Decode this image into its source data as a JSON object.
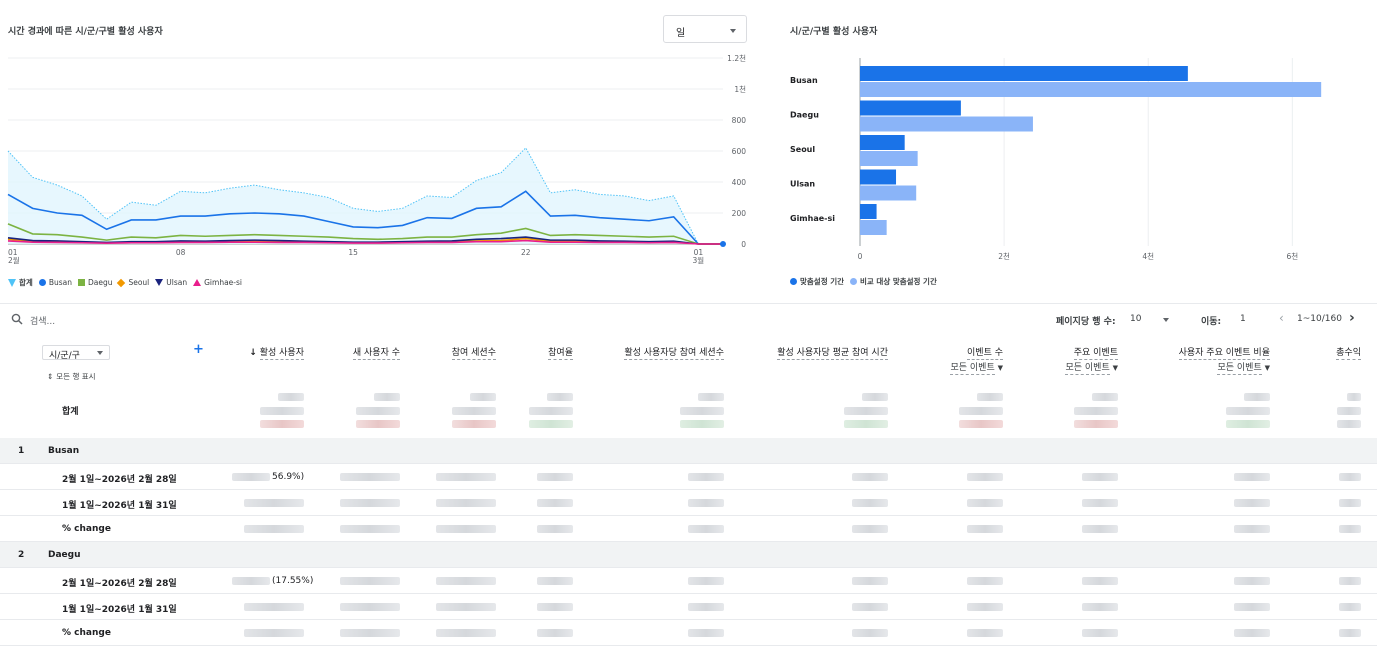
{
  "line_chart": {
    "title": "시간 경과에 따른 시/군/구별 활성 사용자",
    "period_select": "일",
    "y_ticks": [
      "0",
      "200",
      "400",
      "600",
      "800",
      "1천",
      "1.2천"
    ],
    "x_ticks": [
      {
        "day": "01",
        "month": "2월"
      },
      {
        "day": "08",
        "month": ""
      },
      {
        "day": "15",
        "month": ""
      },
      {
        "day": "22",
        "month": ""
      },
      {
        "day": "01",
        "month": "3월"
      }
    ],
    "legend": [
      "합계",
      "Busan",
      "Daegu",
      "Seoul",
      "Ulsan",
      "Gimhae-si"
    ],
    "colors": {
      "total": "#4fc3f7",
      "busan": "#1a73e8",
      "daegu": "#7cb342",
      "seoul": "#f29900",
      "ulsan": "#1a237e",
      "gimhae": "#e91e8c"
    }
  },
  "chart_data": [
    {
      "type": "line",
      "title": "시간 경과에 따른 시/군/구별 활성 사용자",
      "x": [
        "2/1",
        "2/2",
        "2/3",
        "2/4",
        "2/5",
        "2/6",
        "2/7",
        "2/8",
        "2/9",
        "2/10",
        "2/11",
        "2/12",
        "2/13",
        "2/14",
        "2/15",
        "2/16",
        "2/17",
        "2/18",
        "2/19",
        "2/20",
        "2/21",
        "2/22",
        "2/23",
        "2/24",
        "2/25",
        "2/26",
        "2/27",
        "2/28",
        "3/1",
        "3/2"
      ],
      "ylim": [
        0,
        1200
      ],
      "series": [
        {
          "name": "합계",
          "values": [
            600,
            430,
            380,
            310,
            160,
            270,
            250,
            340,
            330,
            360,
            380,
            350,
            330,
            300,
            230,
            210,
            230,
            310,
            300,
            410,
            460,
            620,
            330,
            350,
            320,
            310,
            280,
            310,
            0,
            0
          ]
        },
        {
          "name": "Busan",
          "values": [
            320,
            230,
            200,
            185,
            95,
            155,
            155,
            180,
            180,
            195,
            200,
            195,
            180,
            145,
            110,
            105,
            120,
            170,
            165,
            230,
            240,
            340,
            180,
            185,
            170,
            160,
            150,
            175,
            0,
            0
          ]
        },
        {
          "name": "Daegu",
          "values": [
            130,
            65,
            60,
            45,
            25,
            45,
            40,
            55,
            50,
            55,
            60,
            55,
            50,
            45,
            35,
            30,
            35,
            45,
            45,
            60,
            70,
            100,
            55,
            60,
            55,
            50,
            45,
            50,
            0,
            0
          ]
        },
        {
          "name": "Seoul",
          "values": [
            30,
            18,
            15,
            12,
            8,
            12,
            12,
            15,
            14,
            18,
            20,
            18,
            15,
            14,
            10,
            10,
            12,
            15,
            15,
            20,
            22,
            35,
            18,
            18,
            15,
            15,
            12,
            15,
            0,
            0
          ]
        },
        {
          "name": "Ulsan",
          "values": [
            40,
            22,
            20,
            15,
            10,
            15,
            15,
            20,
            18,
            22,
            25,
            22,
            18,
            15,
            12,
            12,
            15,
            18,
            20,
            30,
            35,
            45,
            25,
            25,
            20,
            18,
            15,
            18,
            0,
            0
          ]
        },
        {
          "name": "Gimhae-si",
          "values": [
            20,
            12,
            10,
            8,
            5,
            8,
            8,
            10,
            10,
            12,
            12,
            10,
            10,
            8,
            6,
            6,
            8,
            10,
            10,
            15,
            15,
            22,
            12,
            12,
            10,
            10,
            8,
            10,
            0,
            0
          ]
        }
      ]
    },
    {
      "type": "bar",
      "title": "시/군/구별 활성 사용자",
      "categories": [
        "Busan",
        "Daegu",
        "Seoul",
        "Ulsan",
        "Gimhae-si"
      ],
      "xlim": [
        0,
        6800
      ],
      "x_ticks": [
        "0",
        "2천",
        "4천",
        "6천"
      ],
      "series": [
        {
          "name": "맞춤설정 기간",
          "values": [
            4550,
            1400,
            620,
            500,
            230
          ]
        },
        {
          "name": "비교 대상 맞춤설정 기간",
          "values": [
            6400,
            2400,
            800,
            780,
            370
          ]
        }
      ],
      "colors": [
        "#1a73e8",
        "#8ab4f8"
      ]
    }
  ],
  "bar_chart": {
    "title": "시/군/구별 활성 사용자",
    "legend": [
      "맞춤설정 기간",
      "비교 대상 맞춤설정 기간"
    ]
  },
  "toolbar": {
    "search_placeholder": "검색...",
    "rows_label": "페이지당 행 수:",
    "rows_value": "10",
    "goto_label": "이동:",
    "goto_value": "1",
    "range": "1~10/160"
  },
  "table": {
    "dim_select": "시/군/구",
    "show_all_rows": "모든 행 표시",
    "total_label": "합계",
    "columns": [
      {
        "label": "활성 사용자",
        "sub": ""
      },
      {
        "label": "새 사용자 수",
        "sub": ""
      },
      {
        "label": "참여 세션수",
        "sub": ""
      },
      {
        "label": "참여율",
        "sub": ""
      },
      {
        "label": "활성 사용자당 참여 세션수",
        "sub": ""
      },
      {
        "label": "활성 사용자당 평균 참여 시간",
        "sub": ""
      },
      {
        "label": "이벤트 수",
        "sub": "모든 이벤트"
      },
      {
        "label": "주요 이벤트",
        "sub": "모든 이벤트"
      },
      {
        "label": "사용자 주요 이벤트 비율",
        "sub": "모든 이벤트"
      },
      {
        "label": "총수익",
        "sub": ""
      }
    ],
    "groups": [
      {
        "num": "1",
        "name": "Busan",
        "period1": "2월 1일~2026년 2월 28일",
        "period1_pct": "56.9%)",
        "period2": "1월 1일~2026년 1월 31일",
        "change": "% change"
      },
      {
        "num": "2",
        "name": "Daegu",
        "period1": "2월 1일~2026년 2월 28일",
        "period1_pct": "(17.55%)",
        "period2": "1월 1일~2026년 1월 31일",
        "change": "% change"
      }
    ]
  }
}
